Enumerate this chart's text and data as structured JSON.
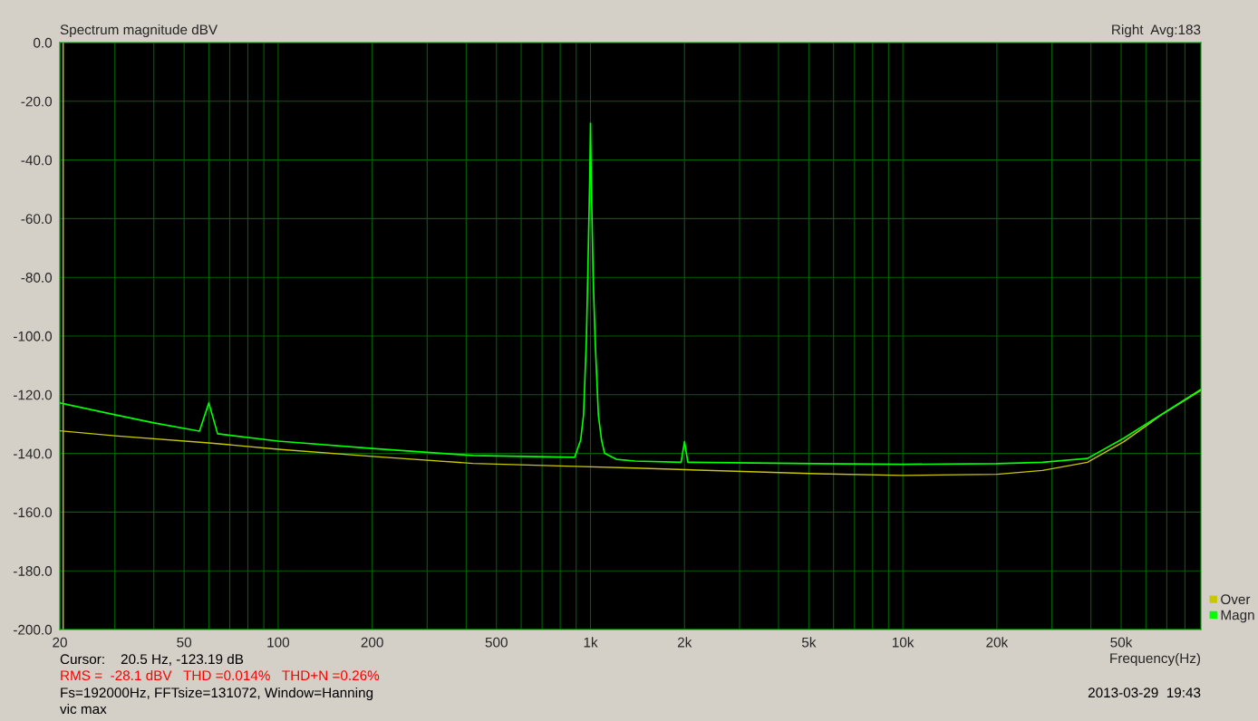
{
  "chart_data": {
    "type": "line",
    "title": "Spectrum magnitude dBV",
    "subtitle": "Right  Avg:183",
    "xlabel": "Frequency(Hz)",
    "annotations": [
      "Cursor:    20.5 Hz, -123.19 dB",
      "RMS =  -28.1 dBV   THD =0.014%   THD+N =0.26%",
      "Fs=192000Hz, FFTsize=131072, Window=Hanning",
      "vic max",
      "2013-03-29  19:43"
    ],
    "series": [
      {
        "name": "Over",
        "color": "#c8c800",
        "x": [
          20,
          30,
          60,
          100,
          200,
          420,
          890,
          1390,
          5300,
          10000,
          20000,
          28000,
          39000,
          51000,
          67000,
          90000
        ],
        "values": [
          -132.3,
          -134,
          -136.4,
          -138.6,
          -141,
          -143.4,
          -144.4,
          -145,
          -146.9,
          -147.5,
          -147.1,
          -145.8,
          -143,
          -136,
          -127,
          -118.5
        ]
      },
      {
        "name": "Magn",
        "color": "#00ff00",
        "x": [
          20,
          30,
          40,
          56,
          60,
          64,
          100,
          200,
          420,
          890,
          930,
          950,
          970,
          980,
          995,
          1000,
          1005,
          1020,
          1035,
          1060,
          1085,
          1110,
          1210,
          1390,
          1950,
          2000,
          2050,
          5300,
          10000,
          20000,
          28000,
          39000,
          51000,
          67000,
          90000
        ],
        "values": [
          -122.8,
          -126.8,
          -129.6,
          -132.4,
          -122.8,
          -133.3,
          -135.8,
          -138.3,
          -140.7,
          -141.3,
          -135.5,
          -127,
          -101.5,
          -80,
          -45,
          -27.5,
          -45,
          -80,
          -101.5,
          -127,
          -135.5,
          -140,
          -142,
          -142.6,
          -143,
          -136,
          -143,
          -143.5,
          -143.7,
          -143.5,
          -143,
          -141.7,
          -134.8,
          -126.8,
          -118.2
        ]
      }
    ],
    "log": "x",
    "xlim": [
      20,
      90000
    ],
    "ylim": [
      -200,
      0
    ],
    "xticks": [
      20,
      {
        "value": 30,
        "label": null
      },
      {
        "value": 40,
        "label": null
      },
      50,
      {
        "value": 60,
        "label": null
      },
      {
        "value": 70,
        "label": null
      },
      {
        "value": 80,
        "label": null
      },
      {
        "value": 90,
        "label": null
      },
      100,
      200,
      {
        "value": 300,
        "label": null
      },
      {
        "value": 400,
        "label": null
      },
      500,
      {
        "value": 600,
        "label": null
      },
      {
        "value": 700,
        "label": null
      },
      {
        "value": 800,
        "label": null
      },
      {
        "value": 900,
        "label": null
      },
      {
        "value": 1000,
        "label": "1k"
      },
      {
        "value": 2000,
        "label": "2k"
      },
      {
        "value": 3000,
        "label": null
      },
      {
        "value": 4000,
        "label": null
      },
      {
        "value": 5000,
        "label": "5k"
      },
      {
        "value": 6000,
        "label": null
      },
      {
        "value": 7000,
        "label": null
      },
      {
        "value": 8000,
        "label": null
      },
      {
        "value": 9000,
        "label": null
      },
      {
        "value": 10000,
        "label": "10k"
      },
      {
        "value": 20000,
        "label": "20k"
      },
      {
        "value": 30000,
        "label": null
      },
      {
        "value": 40000,
        "label": null
      },
      {
        "value": 50000,
        "label": "50k"
      },
      {
        "value": 60000,
        "label": null
      },
      {
        "value": 70000,
        "label": null
      },
      {
        "value": 80000,
        "label": null
      }
    ],
    "yticks": [
      {
        "value": -200,
        "label": "-200.0"
      },
      {
        "value": -180,
        "label": "-180.0"
      },
      {
        "value": -160,
        "label": "-160.0"
      },
      {
        "value": -140,
        "label": "-140.0"
      },
      {
        "value": -120,
        "label": "-120.0"
      },
      {
        "value": -100,
        "label": "-100.0"
      },
      {
        "value": -80,
        "label": "-80.0"
      },
      {
        "value": -60,
        "label": "-60.0"
      },
      {
        "value": -40,
        "label": "-40.0"
      },
      {
        "value": -20,
        "label": "-20.0"
      },
      {
        "value": 0,
        "label": "0.0"
      }
    ],
    "ref_lines": [
      {
        "axis": "x",
        "value": 20.5,
        "color": "#c8c800"
      }
    ],
    "grid": true,
    "legend": "bottom right"
  }
}
